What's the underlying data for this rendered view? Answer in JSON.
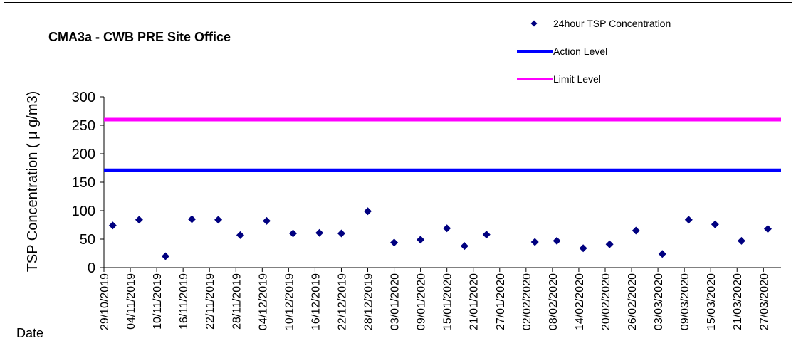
{
  "chart_data": {
    "type": "scatter",
    "title": "CMA3a - CWB PRE Site Office",
    "ylabel": "TSP Concentration ( μ g/m3)",
    "xlabel": "Date",
    "ylim": [
      0,
      300
    ],
    "yticks": [
      0,
      50,
      100,
      150,
      200,
      250,
      300
    ],
    "xlim": [
      "29/10/2019",
      "31/03/2020"
    ],
    "xticks": [
      "29/10/2019",
      "04/11/2019",
      "10/11/2019",
      "16/11/2019",
      "22/11/2019",
      "28/11/2019",
      "04/12/2019",
      "10/12/2019",
      "16/12/2019",
      "22/12/2019",
      "28/12/2019",
      "03/01/2020",
      "09/01/2020",
      "15/01/2020",
      "21/01/2020",
      "27/01/2020",
      "02/02/2020",
      "08/02/2020",
      "14/02/2020",
      "20/02/2020",
      "26/02/2020",
      "03/03/2020",
      "09/03/2020",
      "15/03/2020",
      "21/03/2020",
      "27/03/2020"
    ],
    "grid": false,
    "legend_position": "top-right",
    "series": [
      {
        "name": "24hour TSP Concentration",
        "kind": "scatter",
        "marker": "diamond",
        "color": "#000080",
        "points": [
          {
            "x": "31/10/2019",
            "y": 74
          },
          {
            "x": "06/11/2019",
            "y": 84
          },
          {
            "x": "12/11/2019",
            "y": 20
          },
          {
            "x": "18/11/2019",
            "y": 85
          },
          {
            "x": "24/11/2019",
            "y": 84
          },
          {
            "x": "29/11/2019",
            "y": 57
          },
          {
            "x": "05/12/2019",
            "y": 82
          },
          {
            "x": "11/12/2019",
            "y": 60
          },
          {
            "x": "17/12/2019",
            "y": 61
          },
          {
            "x": "22/12/2019",
            "y": 60
          },
          {
            "x": "28/12/2019",
            "y": 99
          },
          {
            "x": "03/01/2020",
            "y": 44
          },
          {
            "x": "09/01/2020",
            "y": 49
          },
          {
            "x": "15/01/2020",
            "y": 69
          },
          {
            "x": "19/01/2020",
            "y": 38
          },
          {
            "x": "24/01/2020",
            "y": 58
          },
          {
            "x": "04/02/2020",
            "y": 45
          },
          {
            "x": "09/02/2020",
            "y": 47
          },
          {
            "x": "15/02/2020",
            "y": 34
          },
          {
            "x": "21/02/2020",
            "y": 41
          },
          {
            "x": "27/02/2020",
            "y": 65
          },
          {
            "x": "04/03/2020",
            "y": 24
          },
          {
            "x": "10/03/2020",
            "y": 84
          },
          {
            "x": "16/03/2020",
            "y": 76
          },
          {
            "x": "22/03/2020",
            "y": 47
          },
          {
            "x": "28/03/2020",
            "y": 68
          }
        ]
      },
      {
        "name": "Action Level",
        "kind": "hline",
        "y": 171,
        "color": "#0000FF"
      },
      {
        "name": "Limit Level",
        "kind": "hline",
        "y": 260,
        "color": "#FF00FF"
      }
    ]
  }
}
